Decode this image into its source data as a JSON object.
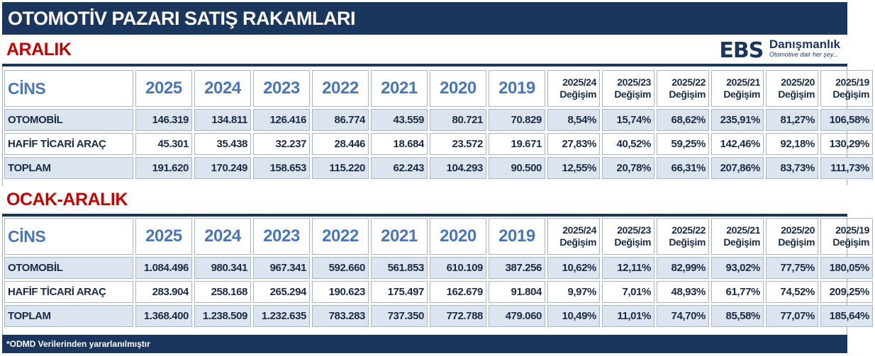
{
  "title": "OTOMOTİV PAZARI SATIŞ RAKAMLARI",
  "logo": {
    "mark": "EBS",
    "brand": "Danışmanlık",
    "tagline": "Otomotive dair her şey..."
  },
  "colors": {
    "navy": "#1b365d",
    "section_red": "#c00000",
    "year_blue": "#4a76b4",
    "row_shade": "#dce4ef"
  },
  "columns": {
    "category": "CİNS",
    "years": [
      "2025",
      "2024",
      "2023",
      "2022",
      "2021",
      "2020",
      "2019"
    ],
    "changes": [
      {
        "period": "2025/24",
        "label": "Değişim"
      },
      {
        "period": "2025/23",
        "label": "Değişim"
      },
      {
        "period": "2025/22",
        "label": "Değişim"
      },
      {
        "period": "2025/21",
        "label": "Değişim"
      },
      {
        "period": "2025/20",
        "label": "Değişim"
      },
      {
        "period": "2025/19",
        "label": "Değişim"
      }
    ]
  },
  "sections": [
    {
      "name": "ARALIK",
      "rows": [
        {
          "label": "OTOMOBİL",
          "values": [
            "146.319",
            "134.811",
            "126.416",
            "86.774",
            "43.559",
            "80.721",
            "70.829"
          ],
          "changes": [
            "8,54%",
            "15,74%",
            "68,62%",
            "235,91%",
            "81,27%",
            "106,58%"
          ]
        },
        {
          "label": "HAFİF TİCARİ ARAÇ",
          "values": [
            "45.301",
            "35.438",
            "32.237",
            "28.446",
            "18.684",
            "23.572",
            "19.671"
          ],
          "changes": [
            "27,83%",
            "40,52%",
            "59,25%",
            "142,46%",
            "92,18%",
            "130,29%"
          ]
        },
        {
          "label": "TOPLAM",
          "values": [
            "191.620",
            "170.249",
            "158.653",
            "115.220",
            "62.243",
            "104.293",
            "90.500"
          ],
          "changes": [
            "12,55%",
            "20,78%",
            "66,31%",
            "207,86%",
            "83,73%",
            "111,73%"
          ]
        }
      ]
    },
    {
      "name": "OCAK-ARALIK",
      "rows": [
        {
          "label": "OTOMOBİL",
          "values": [
            "1.084.496",
            "980.341",
            "967.341",
            "592.660",
            "561.853",
            "610.109",
            "387.256"
          ],
          "changes": [
            "10,62%",
            "12,11%",
            "82,99%",
            "93,02%",
            "77,75%",
            "180,05%"
          ]
        },
        {
          "label": "HAFİF TİCARİ ARAÇ",
          "values": [
            "283.904",
            "258.168",
            "265.294",
            "190.623",
            "175.497",
            "162.679",
            "91.804"
          ],
          "changes": [
            "9,97%",
            "7,01%",
            "48,93%",
            "61,77%",
            "74,52%",
            "209,25%"
          ]
        },
        {
          "label": "TOPLAM",
          "values": [
            "1.368.400",
            "1.238.509",
            "1.232.635",
            "783.283",
            "737.350",
            "772.788",
            "479.060"
          ],
          "changes": [
            "10,49%",
            "11,01%",
            "74,70%",
            "85,58%",
            "77,07%",
            "185,64%"
          ]
        }
      ]
    }
  ],
  "footer": "*ODMD Verilerinden yararlanılmıştır"
}
